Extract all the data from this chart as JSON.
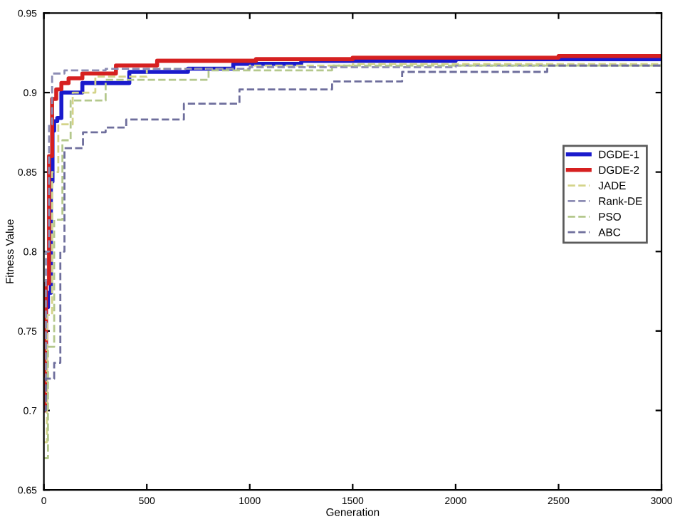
{
  "chart_data": {
    "type": "step",
    "xlabel": "Generation",
    "ylabel": "Fitness Value",
    "xlim": [
      0,
      3000
    ],
    "ylim": [
      0.65,
      0.95
    ],
    "xticks": [
      0,
      500,
      1000,
      1500,
      2000,
      2500,
      3000
    ],
    "yticks": [
      0.65,
      0.7,
      0.75,
      0.8,
      0.85,
      0.9,
      0.95
    ],
    "legend": "right",
    "grid": false,
    "series": [
      {
        "name": "DGDE-1",
        "color": "#1a1acc",
        "line_style": "solid",
        "x": [
          0,
          5,
          10,
          20,
          34,
          42,
          50,
          65,
          85,
          187,
          415,
          700,
          920,
          1250,
          2000,
          3000
        ],
        "values": [
          0.7,
          0.741,
          0.765,
          0.774,
          0.844,
          0.876,
          0.882,
          0.884,
          0.9,
          0.906,
          0.913,
          0.915,
          0.918,
          0.92,
          0.921,
          0.922
        ]
      },
      {
        "name": "DGDE-2",
        "color": "#d62020",
        "line_style": "solid",
        "x": [
          0,
          10,
          25,
          40,
          60,
          85,
          120,
          187,
          350,
          550,
          1030,
          1500,
          2500,
          3000
        ],
        "values": [
          0.7,
          0.78,
          0.86,
          0.896,
          0.902,
          0.906,
          0.909,
          0.912,
          0.917,
          0.92,
          0.921,
          0.922,
          0.923,
          0.923
        ]
      },
      {
        "name": "JADE",
        "color": "#d4d48a",
        "line_style": "dashed",
        "x": [
          0,
          15,
          40,
          70,
          140,
          250,
          500,
          1000,
          1500,
          3000
        ],
        "values": [
          0.68,
          0.76,
          0.85,
          0.88,
          0.9,
          0.91,
          0.915,
          0.917,
          0.918,
          0.918
        ]
      },
      {
        "name": "Rank-DE",
        "color": "#8c8cb4",
        "line_style": "dashed",
        "x": [
          0,
          10,
          25,
          40,
          100,
          300,
          1000,
          2000,
          3000
        ],
        "values": [
          0.72,
          0.8,
          0.88,
          0.912,
          0.914,
          0.915,
          0.916,
          0.917,
          0.918
        ]
      },
      {
        "name": "PSO",
        "color": "#b4c88c",
        "line_style": "dashed",
        "x": [
          0,
          20,
          50,
          90,
          130,
          300,
          800,
          1400,
          3000
        ],
        "values": [
          0.67,
          0.74,
          0.82,
          0.87,
          0.895,
          0.908,
          0.914,
          0.917,
          0.918
        ]
      },
      {
        "name": "ABC",
        "color": "#6e6e9c",
        "line_style": "dashed",
        "x": [
          0,
          10,
          50,
          80,
          100,
          190,
          300,
          400,
          680,
          950,
          1400,
          1740,
          2445,
          3000
        ],
        "values": [
          0.7,
          0.72,
          0.73,
          0.8,
          0.865,
          0.875,
          0.878,
          0.883,
          0.893,
          0.902,
          0.907,
          0.913,
          0.917,
          0.917
        ]
      }
    ]
  }
}
